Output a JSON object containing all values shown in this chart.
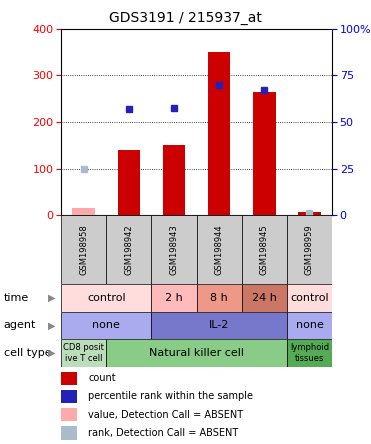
{
  "title": "GDS3191 / 215937_at",
  "samples": [
    "GSM198958",
    "GSM198942",
    "GSM198943",
    "GSM198944",
    "GSM198945",
    "GSM198959"
  ],
  "counts": [
    15,
    140,
    150,
    350,
    265,
    8
  ],
  "counts_absent": [
    true,
    false,
    false,
    false,
    false,
    false
  ],
  "percentile_ranks": [
    25,
    57,
    57.5,
    70,
    67,
    1.5
  ],
  "percentile_ranks_absent": [
    true,
    false,
    false,
    false,
    false,
    true
  ],
  "ylim_left": [
    0,
    400
  ],
  "ylim_right": [
    0,
    100
  ],
  "yticks_left": [
    0,
    100,
    200,
    300,
    400
  ],
  "yticks_right": [
    0,
    25,
    50,
    75,
    100
  ],
  "ytick_labels_right": [
    "0",
    "25",
    "50",
    "75",
    "100%"
  ],
  "bar_color": "#cc0000",
  "bar_color_absent": "#ffaaaa",
  "rank_color": "#2222bb",
  "rank_color_absent": "#aabbcc",
  "sample_col_color": "#cccccc",
  "annot_rows": [
    {
      "label": "cell type",
      "groups": [
        {
          "span": [
            0,
            1
          ],
          "text": "CD8 posit\nive T cell",
          "color": "#bbddbb",
          "fontsize": 6
        },
        {
          "span": [
            1,
            5
          ],
          "text": "Natural killer cell",
          "color": "#88cc88",
          "fontsize": 8
        },
        {
          "span": [
            5,
            6
          ],
          "text": "lymphoid\ntissues",
          "color": "#55aa55",
          "fontsize": 6
        }
      ]
    },
    {
      "label": "agent",
      "groups": [
        {
          "span": [
            0,
            2
          ],
          "text": "none",
          "color": "#aaaaee",
          "fontsize": 8
        },
        {
          "span": [
            2,
            5
          ],
          "text": "IL-2",
          "color": "#7777cc",
          "fontsize": 8
        },
        {
          "span": [
            5,
            6
          ],
          "text": "none",
          "color": "#aaaaee",
          "fontsize": 8
        }
      ]
    },
    {
      "label": "time",
      "groups": [
        {
          "span": [
            0,
            2
          ],
          "text": "control",
          "color": "#ffdddd",
          "fontsize": 8
        },
        {
          "span": [
            2,
            3
          ],
          "text": "2 h",
          "color": "#ffbbbb",
          "fontsize": 8
        },
        {
          "span": [
            3,
            4
          ],
          "text": "8 h",
          "color": "#ee9988",
          "fontsize": 8
        },
        {
          "span": [
            4,
            5
          ],
          "text": "24 h",
          "color": "#cc7766",
          "fontsize": 8
        },
        {
          "span": [
            5,
            6
          ],
          "text": "control",
          "color": "#ffdddd",
          "fontsize": 8
        }
      ]
    }
  ],
  "legend_items": [
    {
      "label": "count",
      "color": "#cc0000"
    },
    {
      "label": "percentile rank within the sample",
      "color": "#2222bb"
    },
    {
      "label": "value, Detection Call = ABSENT",
      "color": "#ffaaaa"
    },
    {
      "label": "rank, Detection Call = ABSENT",
      "color": "#aabbcc"
    }
  ]
}
